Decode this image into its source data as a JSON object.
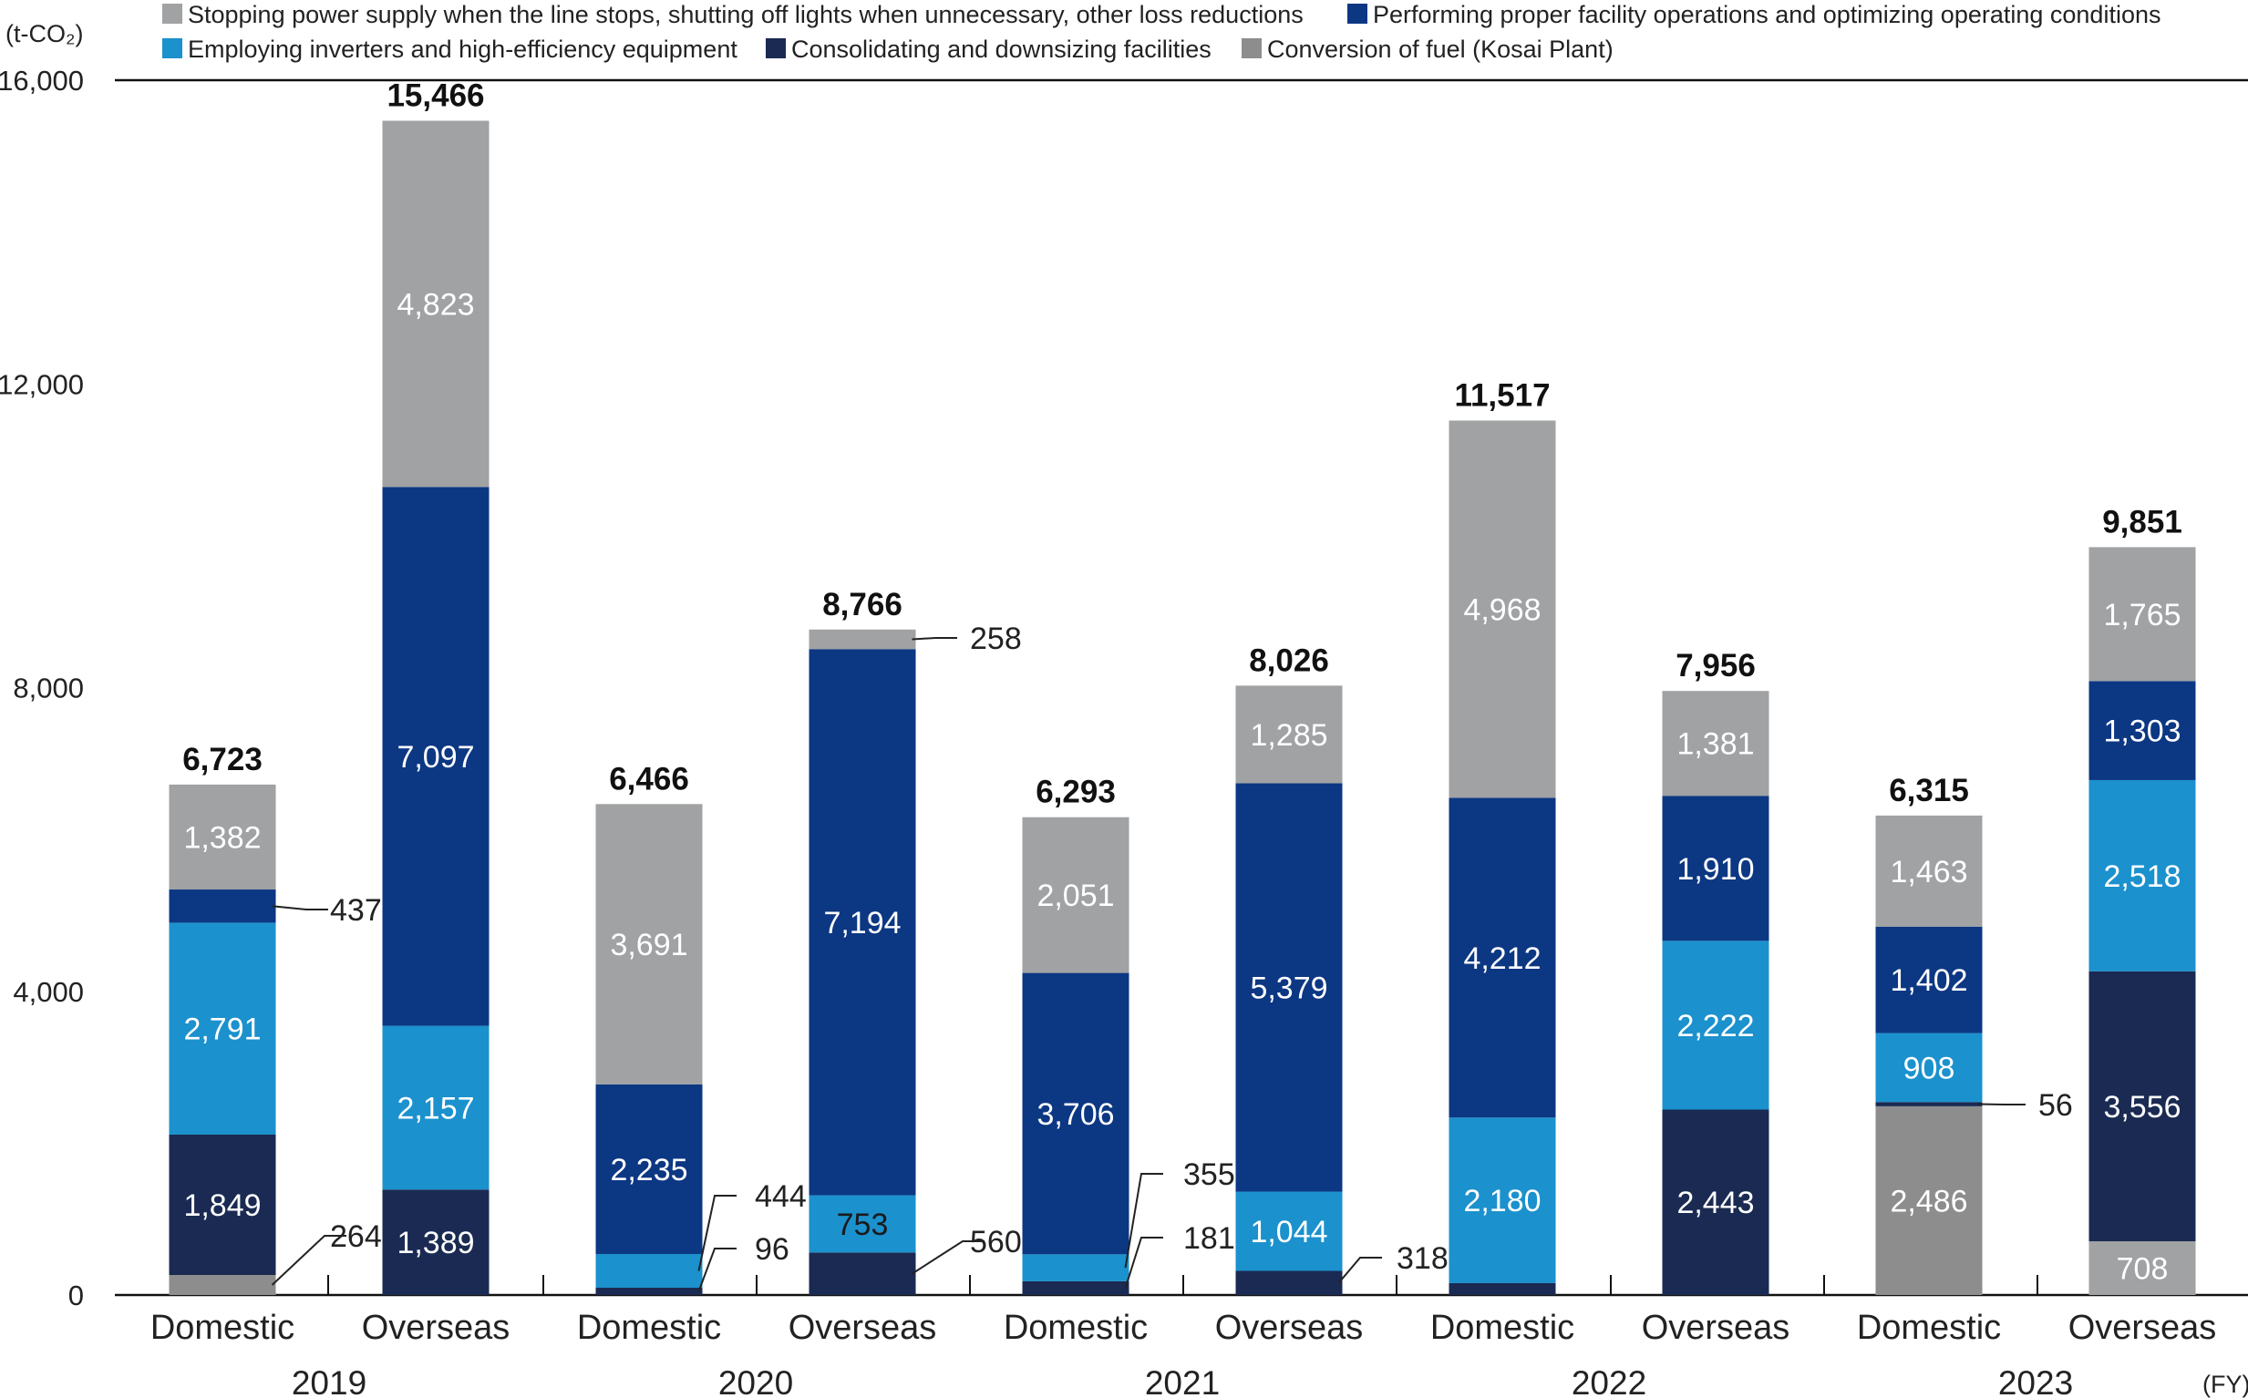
{
  "chart_data": {
    "type": "bar",
    "stacked": true,
    "unit_label": "(t-CO₂)",
    "x_unit": "(FY)",
    "ylim": [
      0,
      16000
    ],
    "y_ticks": [
      "0",
      "4,000",
      "8,000",
      "12,000",
      "16,000"
    ],
    "y_tick_values": [
      0,
      4000,
      8000,
      12000,
      16000
    ],
    "legend_position": "top",
    "legend_rows": [
      [
        0,
        2
      ],
      [
        1,
        3,
        4
      ]
    ],
    "categories": [
      "Domestic",
      "Overseas",
      "Domestic",
      "Overseas",
      "Domestic",
      "Overseas",
      "Domestic",
      "Overseas",
      "Domestic",
      "Overseas"
    ],
    "groups": [
      "2019",
      "2020",
      "2021",
      "2022",
      "2023"
    ],
    "series": [
      {
        "name": "Stopping power supply when the line stops, shutting off lights when unnecessary, other loss reductions",
        "color": "#a0a2a3"
      },
      {
        "name": "Employing inverters and high-efficiency equipment",
        "color": "#1b91cd"
      },
      {
        "name": "Performing proper facility operations and optimizing operating conditions",
        "color": "#0c3783"
      },
      {
        "name": "Consolidating and downsizing facilities",
        "color": "#1a2a52"
      },
      {
        "name": "Conversion of fuel (Kosai Plant)",
        "color": "#8d8d8d"
      }
    ],
    "bars": [
      {
        "total": "6,723",
        "segments": [
          {
            "series": 4,
            "value": 264,
            "label": "264",
            "callout": true
          },
          {
            "series": 3,
            "value": 1849,
            "label": "1,849"
          },
          {
            "series": 1,
            "value": 2791,
            "label": "2,791"
          },
          {
            "series": 2,
            "value": 437,
            "label": "437",
            "callout": true
          },
          {
            "series": 0,
            "value": 1382,
            "label": "1,382"
          }
        ]
      },
      {
        "total": "15,466",
        "segments": [
          {
            "series": 3,
            "value": 1389,
            "label": "1,389"
          },
          {
            "series": 1,
            "value": 2157,
            "label": "2,157"
          },
          {
            "series": 2,
            "value": 7097,
            "label": "7,097"
          },
          {
            "series": 0,
            "value": 4823,
            "label": "4,823"
          }
        ]
      },
      {
        "total": "6,466",
        "segments": [
          {
            "series": 3,
            "value": 96,
            "label": "96",
            "callout": true
          },
          {
            "series": 1,
            "value": 444,
            "label": "444",
            "callout": true
          },
          {
            "series": 2,
            "value": 2235,
            "label": "2,235"
          },
          {
            "series": 0,
            "value": 3691,
            "label": "3,691"
          }
        ]
      },
      {
        "total": "8,766",
        "segments": [
          {
            "series": 3,
            "value": 560,
            "label": "560",
            "callout": true
          },
          {
            "series": 1,
            "value": 753,
            "label": "753",
            "dark": true
          },
          {
            "series": 2,
            "value": 7194,
            "label": "7,194"
          },
          {
            "series": 0,
            "value": 258,
            "label": "258",
            "callout": true
          }
        ]
      },
      {
        "total": "6,293",
        "segments": [
          {
            "series": 3,
            "value": 181,
            "label": "181",
            "callout": true
          },
          {
            "series": 1,
            "value": 355,
            "label": "355",
            "callout": true
          },
          {
            "series": 2,
            "value": 3706,
            "label": "3,706"
          },
          {
            "series": 0,
            "value": 2051,
            "label": "2,051"
          }
        ]
      },
      {
        "total": "8,026",
        "segments": [
          {
            "series": 3,
            "value": 318,
            "label": "318",
            "callout": true
          },
          {
            "series": 1,
            "value": 1044,
            "label": "1,044"
          },
          {
            "series": 2,
            "value": 5379,
            "label": "5,379"
          },
          {
            "series": 0,
            "value": 1285,
            "label": "1,285"
          }
        ]
      },
      {
        "total": "11,517",
        "segments": [
          {
            "series": 3,
            "value": 157,
            "label": "",
            "hidden_label": true
          },
          {
            "series": 1,
            "value": 2180,
            "label": "2,180"
          },
          {
            "series": 2,
            "value": 4212,
            "label": "4,212"
          },
          {
            "series": 0,
            "value": 4968,
            "label": "4,968"
          }
        ]
      },
      {
        "total": "7,956",
        "segments": [
          {
            "series": 3,
            "value": 2443,
            "label": "2,443"
          },
          {
            "series": 1,
            "value": 2222,
            "label": "2,222"
          },
          {
            "series": 2,
            "value": 1910,
            "label": "1,910"
          },
          {
            "series": 0,
            "value": 1381,
            "label": "1,381"
          }
        ]
      },
      {
        "total": "6,315",
        "segments": [
          {
            "series": 4,
            "value": 2486,
            "label": "2,486"
          },
          {
            "series": 3,
            "value": 56,
            "label": "56",
            "callout": true
          },
          {
            "series": 1,
            "value": 908,
            "label": "908"
          },
          {
            "series": 2,
            "value": 1402,
            "label": "1,402"
          },
          {
            "series": 0,
            "value": 1463,
            "label": "1,463"
          }
        ]
      },
      {
        "total": "9,851",
        "segments": [
          {
            "series": 0,
            "value": 708,
            "label": "708"
          },
          {
            "series": 3,
            "value": 3556,
            "label": "3,556"
          },
          {
            "series": 1,
            "value": 2518,
            "label": "2,518"
          },
          {
            "series": 2,
            "value": 1303,
            "label": "1,303"
          },
          {
            "series": 0,
            "value": 1765,
            "label": "1,765"
          }
        ]
      }
    ]
  }
}
